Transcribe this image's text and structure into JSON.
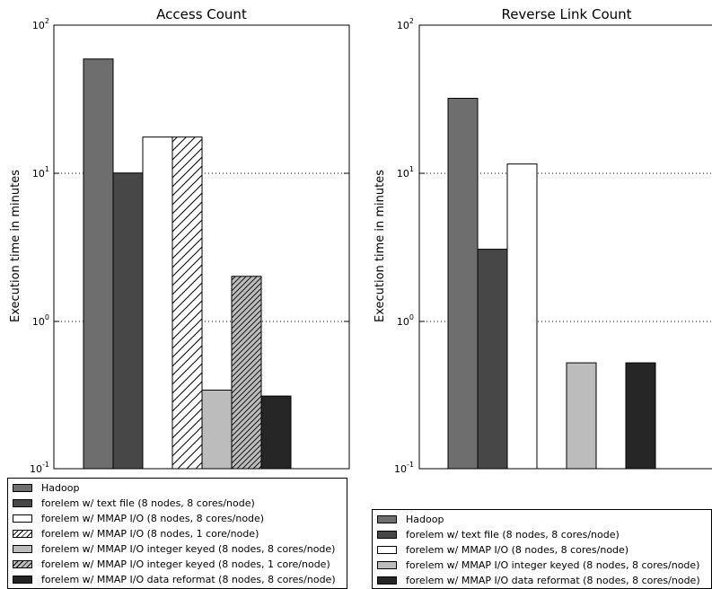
{
  "chart_data": [
    {
      "type": "bar",
      "title": "Access Count",
      "ylabel": "Execution time in minutes",
      "yscale": "log",
      "ylim": [
        0.1,
        100
      ],
      "ytick_labels": [
        "10",
        "10",
        "10",
        "10"
      ],
      "ytick_exponents": [
        "-1",
        "0",
        "1",
        "2"
      ],
      "grid": "horizontal dotted at 10^0 and 10^1",
      "legend_position": "below",
      "series": [
        {
          "name": "Hadoop",
          "values": [
            59
          ]
        },
        {
          "name": "forelem w/ text file (8 nodes, 8 cores/node)",
          "values": [
            10
          ]
        },
        {
          "name": "forelem w/ MMAP I/O (8 nodes, 8 cores/node)",
          "values": [
            17.5
          ]
        },
        {
          "name": "forelem w/ MMAP I/O (8 nodes, 1 core/node)",
          "values": [
            17.5
          ]
        },
        {
          "name": "forelem w/ MMAP I/O integer keyed (8 nodes, 8 cores/node)",
          "values": [
            0.34
          ]
        },
        {
          "name": "forelem w/ MMAP I/O integer keyed (8 nodes, 1 core/node)",
          "values": [
            2.0
          ]
        },
        {
          "name": "forelem w/ MMAP I/O data reformat (8 nodes, 8 cores/node)",
          "values": [
            0.31
          ]
        }
      ]
    },
    {
      "type": "bar",
      "title": "Reverse Link Count",
      "ylabel": "Execution time in minutes",
      "yscale": "log",
      "ylim": [
        0.1,
        100
      ],
      "ytick_labels": [
        "10",
        "10",
        "10",
        "10"
      ],
      "ytick_exponents": [
        "-1",
        "0",
        "1",
        "2"
      ],
      "grid": "horizontal dotted at 10^0 and 10^1",
      "legend_position": "below",
      "series": [
        {
          "name": "Hadoop",
          "values": [
            32
          ]
        },
        {
          "name": "forelem w/ text file (8 nodes, 8 cores/node)",
          "values": [
            3.05
          ]
        },
        {
          "name": "forelem w/ MMAP I/O (8 nodes, 8 cores/node)",
          "values": [
            11.5
          ]
        },
        {
          "name": "forelem w/ MMAP I/O integer keyed (8 nodes, 8 cores/node)",
          "values": [
            0.52
          ]
        },
        {
          "name": "forelem w/ MMAP I/O data reformat (8 nodes, 8 cores/node)",
          "values": [
            0.52
          ]
        }
      ]
    }
  ],
  "styles": {
    "hadoop": {
      "fill": "#6e6e6e",
      "hatch": "none"
    },
    "text_file": {
      "fill": "#474747",
      "hatch": "none"
    },
    "mmap": {
      "fill": "#ffffff",
      "hatch": "none"
    },
    "mmap_1core": {
      "fill": "#ffffff",
      "hatch": "diagonal"
    },
    "int_keyed": {
      "fill": "#bcbcbc",
      "hatch": "none"
    },
    "int_keyed_1core": {
      "fill": "#bcbcbc",
      "hatch": "diagonal"
    },
    "reformat": {
      "fill": "#262626",
      "hatch": "none"
    }
  },
  "legends": {
    "left": [
      {
        "style": "hadoop",
        "label": "Hadoop"
      },
      {
        "style": "text_file",
        "label": "forelem w/ text file (8 nodes, 8 cores/node)"
      },
      {
        "style": "mmap",
        "label": "forelem w/ MMAP I/O (8 nodes, 8 cores/node)"
      },
      {
        "style": "mmap_1core",
        "label": "forelem w/ MMAP I/O (8 nodes, 1 core/node)"
      },
      {
        "style": "int_keyed",
        "label": "forelem w/ MMAP I/O integer keyed (8 nodes, 8 cores/node)"
      },
      {
        "style": "int_keyed_1core",
        "label": "forelem w/ MMAP I/O integer keyed (8 nodes, 1 core/node)"
      },
      {
        "style": "reformat",
        "label": "forelem w/ MMAP I/O data reformat (8 nodes, 8 cores/node)"
      }
    ],
    "right": [
      {
        "style": "hadoop",
        "label": "Hadoop"
      },
      {
        "style": "text_file",
        "label": "forelem w/ text file (8 nodes, 8 cores/node)"
      },
      {
        "style": "mmap",
        "label": "forelem w/ MMAP I/O (8 nodes, 8 cores/node)"
      },
      {
        "style": "int_keyed",
        "label": "forelem w/ MMAP I/O integer keyed (8 nodes, 8 cores/node)"
      },
      {
        "style": "reformat",
        "label": "forelem w/ MMAP I/O data reformat (8 nodes, 8 cores/node)"
      }
    ]
  }
}
